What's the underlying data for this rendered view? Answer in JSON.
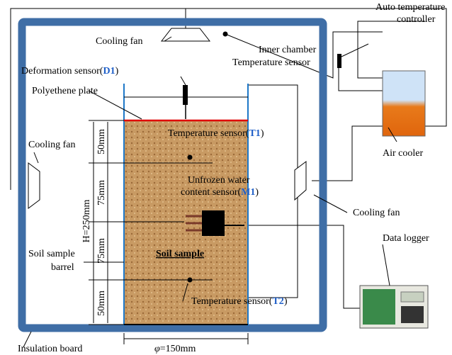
{
  "cooling_fan_top": "Cooling fan",
  "inner_sensor": [
    "Inner chamber",
    "Temperature sensor"
  ],
  "controller": [
    "Auto temperature",
    "controller"
  ],
  "deformation": {
    "text": "Deformation sensor(",
    "id": "D1",
    "close": ")"
  },
  "plate": "Polyethene plate",
  "cooling_fan_left": "Cooling fan",
  "t1": {
    "text": "Temperature sensor(",
    "id": "T1",
    "close": ")"
  },
  "m1": {
    "line1": "Unfrozen water",
    "text": "content sensor(",
    "id": "M1",
    "close": ")"
  },
  "dims": {
    "h": "H=250mm",
    "d1": "50mm",
    "d2": "75mm",
    "d3": "75mm",
    "d4": "50mm"
  },
  "air_cooler": "Air cooler",
  "cooling_fan_right": "Cooling fan",
  "soil_sample": "Soil sample",
  "barrel": [
    "Soil sample",
    "barrel"
  ],
  "data_logger": "Data logger",
  "t2": {
    "text": "Temperature sensor(",
    "id": "T2",
    "close": ")"
  },
  "insulation": "Insulation board",
  "diameter": {
    "symbol": "φ",
    "text": "=150mm"
  }
}
